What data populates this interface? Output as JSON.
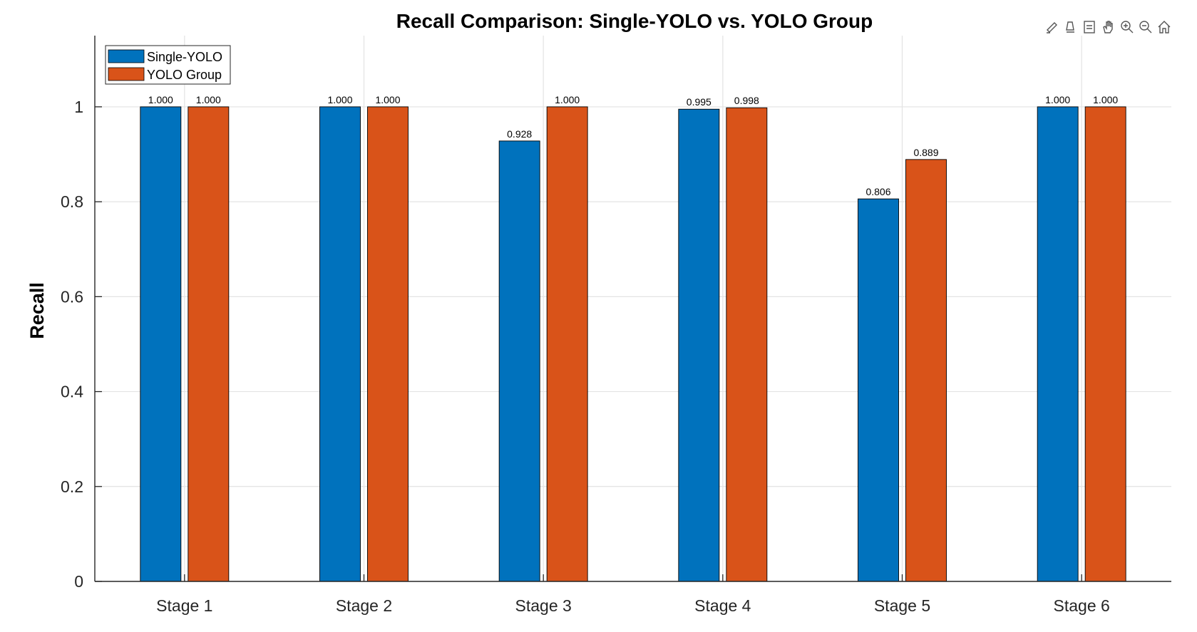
{
  "chart_data": {
    "type": "bar",
    "title": "Recall Comparison: Single-YOLO vs. YOLO Group",
    "xlabel": "",
    "ylabel": "Recall",
    "categories": [
      "Stage 1",
      "Stage 2",
      "Stage 3",
      "Stage 4",
      "Stage 5",
      "Stage 6"
    ],
    "series": [
      {
        "name": "Single-YOLO",
        "color": "#0072BD",
        "values": [
          1.0,
          1.0,
          0.928,
          0.995,
          0.806,
          1.0
        ],
        "labels": [
          "1.000",
          "1.000",
          "0.928",
          "0.995",
          "0.806",
          "1.000"
        ]
      },
      {
        "name": "YOLO Group",
        "color": "#D95319",
        "values": [
          1.0,
          1.0,
          1.0,
          0.998,
          0.889,
          1.0
        ],
        "labels": [
          "1.000",
          "1.000",
          "1.000",
          "0.998",
          "0.889",
          "1.000"
        ]
      }
    ],
    "ylim": [
      0,
      1.15
    ],
    "yticks": [
      0,
      0.2,
      0.4,
      0.6,
      0.8,
      1
    ],
    "ytick_labels": [
      "0",
      "0.2",
      "0.4",
      "0.6",
      "0.8",
      "1"
    ],
    "grid": true,
    "legend_position": "top-left"
  },
  "toolbar": {
    "icons": [
      "brush-icon",
      "data-tips-icon",
      "legend-icon",
      "pan-icon",
      "zoom-in-icon",
      "zoom-out-icon",
      "home-icon"
    ]
  }
}
